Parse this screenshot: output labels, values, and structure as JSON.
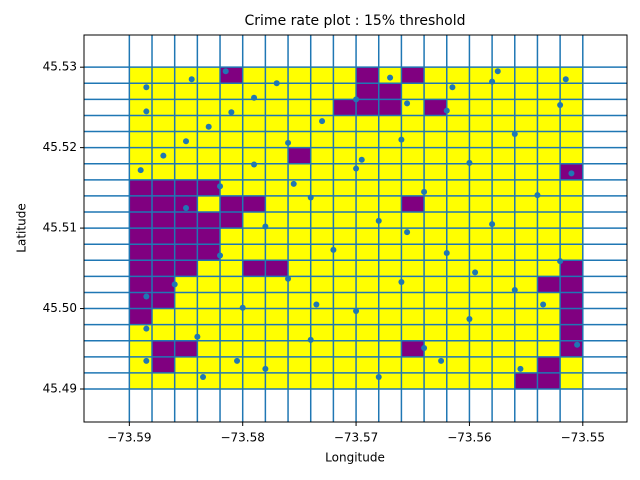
{
  "chart_data": {
    "type": "grid-scatter",
    "title": "Crime rate plot : 15% threshold",
    "x_label": "Longitude",
    "y_label": "Latitude",
    "xlim": [
      -73.594,
      -73.5461
    ],
    "ylim": [
      45.4859,
      45.534
    ],
    "xticks": [
      {
        "value": -73.59,
        "label": "−73.59"
      },
      {
        "value": -73.58,
        "label": "−73.58"
      },
      {
        "value": -73.57,
        "label": "−73.57"
      },
      {
        "value": -73.56,
        "label": "−73.56"
      },
      {
        "value": -73.55,
        "label": "−73.55"
      }
    ],
    "yticks": [
      45.49,
      {
        "value": 45.5,
        "label": "45.50"
      },
      45.51,
      45.52,
      45.53
    ],
    "x_edges": [
      -73.59,
      -73.588,
      -73.586,
      -73.584,
      -73.582,
      -73.58,
      -73.578,
      -73.576,
      -73.574,
      -73.572,
      -73.57,
      -73.568,
      -73.566,
      -73.564,
      -73.562,
      -73.56,
      -73.558,
      -73.556,
      -73.554,
      -73.552,
      -73.55
    ],
    "y_edges": [
      45.53,
      45.528,
      45.526,
      45.524,
      45.522,
      45.52,
      45.518,
      45.516,
      45.514,
      45.512,
      45.51,
      45.508,
      45.506,
      45.504,
      45.502,
      45.5,
      45.498,
      45.496,
      45.494,
      45.492,
      45.49
    ],
    "cell_colors": [
      "#ffff00",
      "#800080"
    ],
    "grid_color": "#1f77b4",
    "cells": [
      [
        0,
        0,
        0,
        0,
        1,
        0,
        0,
        0,
        0,
        0,
        1,
        0,
        1,
        0,
        0,
        0,
        0,
        0,
        0,
        0
      ],
      [
        0,
        0,
        0,
        0,
        0,
        0,
        0,
        0,
        0,
        0,
        1,
        1,
        0,
        0,
        0,
        0,
        0,
        0,
        0,
        0
      ],
      [
        0,
        0,
        0,
        0,
        0,
        0,
        0,
        0,
        0,
        1,
        1,
        1,
        0,
        1,
        0,
        0,
        0,
        0,
        0,
        0
      ],
      [
        0,
        0,
        0,
        0,
        0,
        0,
        0,
        0,
        0,
        0,
        0,
        0,
        0,
        0,
        0,
        0,
        0,
        0,
        0,
        0
      ],
      [
        0,
        0,
        0,
        0,
        0,
        0,
        0,
        0,
        0,
        0,
        0,
        0,
        0,
        0,
        0,
        0,
        0,
        0,
        0,
        0
      ],
      [
        0,
        0,
        0,
        0,
        0,
        0,
        0,
        1,
        0,
        0,
        0,
        0,
        0,
        0,
        0,
        0,
        0,
        0,
        0,
        0
      ],
      [
        0,
        0,
        0,
        0,
        0,
        0,
        0,
        0,
        0,
        0,
        0,
        0,
        0,
        0,
        0,
        0,
        0,
        0,
        0,
        1
      ],
      [
        1,
        1,
        1,
        1,
        0,
        0,
        0,
        0,
        0,
        0,
        0,
        0,
        0,
        0,
        0,
        0,
        0,
        0,
        0,
        0
      ],
      [
        1,
        1,
        1,
        0,
        1,
        1,
        0,
        0,
        0,
        0,
        0,
        0,
        1,
        0,
        0,
        0,
        0,
        0,
        0,
        0
      ],
      [
        1,
        1,
        1,
        1,
        1,
        0,
        0,
        0,
        0,
        0,
        0,
        0,
        0,
        0,
        0,
        0,
        0,
        0,
        0,
        0
      ],
      [
        1,
        1,
        1,
        1,
        0,
        0,
        0,
        0,
        0,
        0,
        0,
        0,
        0,
        0,
        0,
        0,
        0,
        0,
        0,
        0
      ],
      [
        1,
        1,
        1,
        1,
        0,
        0,
        0,
        0,
        0,
        0,
        0,
        0,
        0,
        0,
        0,
        0,
        0,
        0,
        0,
        0
      ],
      [
        1,
        1,
        1,
        0,
        0,
        1,
        1,
        0,
        0,
        0,
        0,
        0,
        0,
        0,
        0,
        0,
        0,
        0,
        0,
        1
      ],
      [
        1,
        1,
        0,
        0,
        0,
        0,
        0,
        0,
        0,
        0,
        0,
        0,
        0,
        0,
        0,
        0,
        0,
        0,
        1,
        1
      ],
      [
        1,
        1,
        0,
        0,
        0,
        0,
        0,
        0,
        0,
        0,
        0,
        0,
        0,
        0,
        0,
        0,
        0,
        0,
        0,
        1
      ],
      [
        1,
        0,
        0,
        0,
        0,
        0,
        0,
        0,
        0,
        0,
        0,
        0,
        0,
        0,
        0,
        0,
        0,
        0,
        0,
        1
      ],
      [
        0,
        0,
        0,
        0,
        0,
        0,
        0,
        0,
        0,
        0,
        0,
        0,
        0,
        0,
        0,
        0,
        0,
        0,
        0,
        1
      ],
      [
        0,
        1,
        1,
        0,
        0,
        0,
        0,
        0,
        0,
        0,
        0,
        0,
        1,
        0,
        0,
        0,
        0,
        0,
        0,
        1
      ],
      [
        0,
        1,
        0,
        0,
        0,
        0,
        0,
        0,
        0,
        0,
        0,
        0,
        0,
        0,
        0,
        0,
        0,
        0,
        1,
        0
      ],
      [
        0,
        0,
        0,
        0,
        0,
        0,
        0,
        0,
        0,
        0,
        0,
        0,
        0,
        0,
        0,
        0,
        0,
        1,
        1,
        0
      ]
    ],
    "point_color": "#1f77b4",
    "x": [
      -73.589,
      -73.587,
      -73.585,
      -73.583,
      -73.581,
      -73.579,
      -73.577,
      -73.585,
      -73.582,
      -73.579,
      -73.576,
      -73.573,
      -73.57,
      -73.567,
      -73.586,
      -73.582,
      -73.578,
      -73.574,
      -73.57,
      -73.566,
      -73.562,
      -73.558,
      -73.584,
      -73.58,
      -73.576,
      -73.572,
      -73.568,
      -73.564,
      -73.56,
      -73.556,
      -73.552,
      -73.578,
      -73.574,
      -73.57,
      -73.566,
      -73.562,
      -73.558,
      -73.554,
      -73.551,
      -73.568,
      -73.564,
      -73.56,
      -73.556,
      -73.552,
      -73.5885,
      -73.5885,
      -73.5885,
      -73.5885,
      -73.5885,
      -73.5555,
      -73.5505,
      -73.5515,
      -73.5575,
      -73.5615,
      -73.5655,
      -73.5695,
      -73.5735,
      -73.5805,
      -73.5835,
      -73.5845,
      -73.5815,
      -73.5595,
      -73.5535,
      -73.5625,
      -73.5755,
      -73.5655
    ],
    "y": [
      45.5172,
      45.519,
      45.5208,
      45.5226,
      45.5244,
      45.5262,
      45.528,
      45.5125,
      45.5152,
      45.5179,
      45.5206,
      45.5233,
      45.526,
      45.5287,
      45.503,
      45.5066,
      45.5102,
      45.5138,
      45.5174,
      45.521,
      45.5246,
      45.5282,
      45.4965,
      45.5001,
      45.5037,
      45.5073,
      45.5109,
      45.5145,
      45.5181,
      45.5217,
      45.5253,
      45.4925,
      45.4961,
      45.4997,
      45.5033,
      45.5069,
      45.5105,
      45.5141,
      45.5168,
      45.4915,
      45.4951,
      45.4987,
      45.5023,
      45.5059,
      45.4935,
      45.4975,
      45.5015,
      45.5275,
      45.5245,
      45.4925,
      45.4955,
      45.5285,
      45.5295,
      45.5275,
      45.5255,
      45.5185,
      45.5005,
      45.4935,
      45.4915,
      45.5285,
      45.5295,
      45.5045,
      45.5005,
      45.4935,
      45.5155,
      45.5095
    ]
  }
}
